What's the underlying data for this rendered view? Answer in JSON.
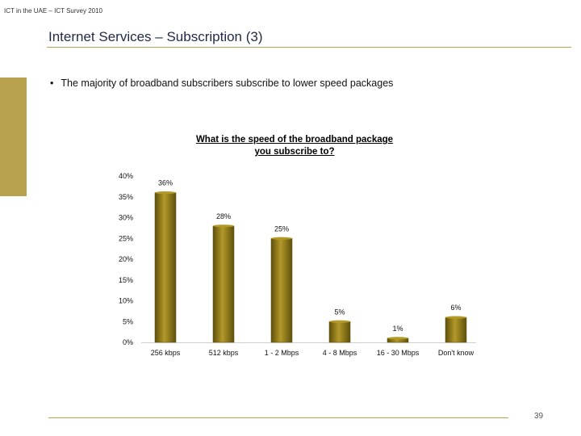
{
  "header": {
    "note": "ICT in the UAE – ICT Survey 2010"
  },
  "slide": {
    "title": "Internet Services – Subscription (3)",
    "bullet": "The majority of broadband subscribers subscribe to lower speed packages",
    "page_number": "39"
  },
  "colors": {
    "accent": "#b9a24e",
    "bar": "#8a7417",
    "bar_light": "#b39a28",
    "bar_dark": "#5e4f0c"
  },
  "chart_data": {
    "type": "bar",
    "title": "What is the speed of the broadband package you subscribe to?",
    "title_lines": [
      "What is the speed of the broadband package",
      "you subscribe to?"
    ],
    "categories": [
      "256 kbps",
      "512 kbps",
      "1 - 2 Mbps",
      "4 - 8 Mbps",
      "16 - 30 Mbps",
      "Don't know"
    ],
    "values": [
      36,
      28,
      25,
      5,
      1,
      6
    ],
    "value_labels": [
      "36%",
      "28%",
      "25%",
      "5%",
      "1%",
      "6%"
    ],
    "ylim": [
      0,
      40
    ],
    "yticks": [
      "0%",
      "5%",
      "10%",
      "15%",
      "20%",
      "25%",
      "30%",
      "35%",
      "40%"
    ],
    "grid": false,
    "legend": "none"
  }
}
